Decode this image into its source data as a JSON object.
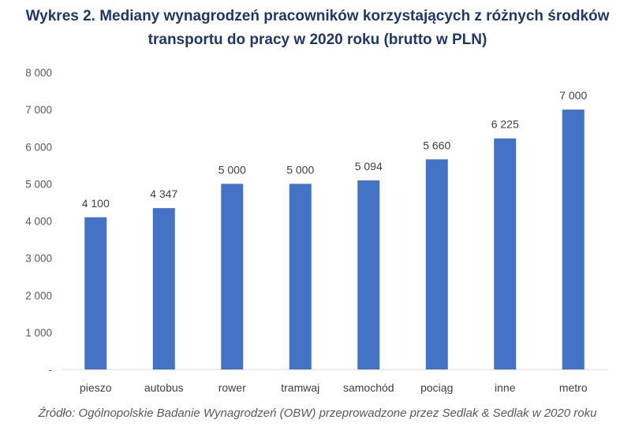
{
  "chart_data": {
    "type": "bar",
    "title_line1": "Wykres 2. Mediany wynagrodzeń pracowników korzystających z różnych środków",
    "title_line2": "transportu do pracy w 2020 roku (brutto w PLN)",
    "categories": [
      "pieszo",
      "autobus",
      "rower",
      "tramwaj",
      "samochód",
      "pociąg",
      "inne",
      "metro"
    ],
    "values": [
      4100,
      4347,
      5000,
      5000,
      5094,
      5660,
      6225,
      7000
    ],
    "data_labels": [
      "4 100",
      "4 347",
      "5 000",
      "5 000",
      "5 094",
      "5 660",
      "6 225",
      "7 000"
    ],
    "y_ticks": [
      0,
      1000,
      2000,
      3000,
      4000,
      5000,
      6000,
      7000,
      8000
    ],
    "y_tick_labels": [
      "-",
      "1 000",
      "2 000",
      "3 000",
      "4 000",
      "5 000",
      "6 000",
      "7 000",
      "8 000"
    ],
    "ylim": [
      0,
      8000
    ],
    "grid": false,
    "bar_color": "#4472c4",
    "xlabel": "",
    "ylabel": ""
  },
  "source": "Źródło: Ogólnopolskie Badanie Wynagrodzeń (OBW) przeprowadzone przez Sedlak & Sedlak w 2020 roku"
}
